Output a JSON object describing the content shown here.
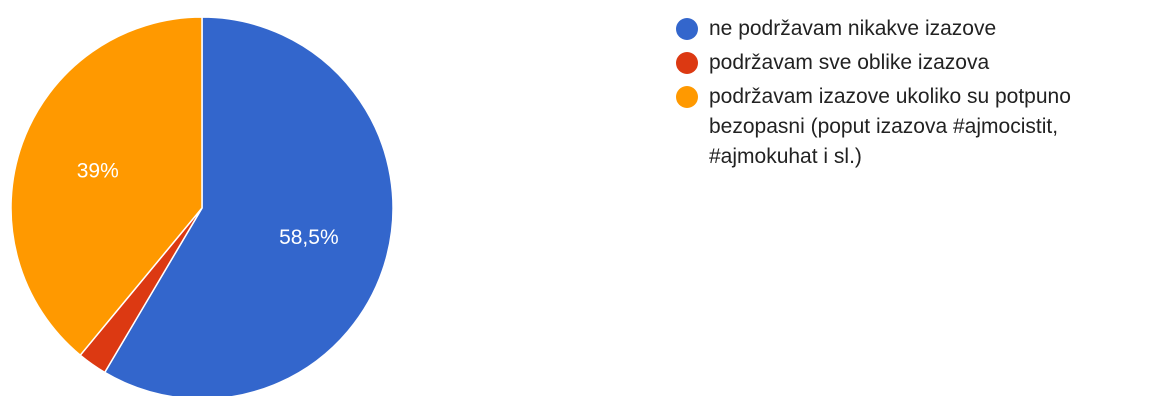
{
  "chart_data": {
    "type": "pie",
    "slices": [
      {
        "label": "ne podržavam nikakve izazove",
        "value": 58.5,
        "display": "58,5%",
        "color": "#3366cc"
      },
      {
        "label": "podržavam sve oblike izazova",
        "value": 2.5,
        "display": "",
        "color": "#dc3912"
      },
      {
        "label": "podržavam izazove ukoliko su potpuno bezopasni (poput izazova #ajmocistit, #ajmokuhat i sl.)",
        "value": 39,
        "display": "39%",
        "color": "#ff9900"
      }
    ],
    "legend_position": "right",
    "start_angle_deg": 90,
    "direction": "clockwise"
  }
}
